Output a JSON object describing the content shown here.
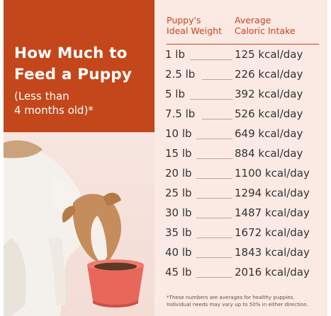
{
  "banner": {
    "title_line1": "How Much to",
    "title_line2": "Feed a Puppy",
    "subtitle_line1": "(Less than",
    "subtitle_line2": "4 months old)*"
  },
  "table": {
    "headers": {
      "weight_line1": "Puppy's",
      "weight_line2": "Ideal Weight",
      "calories_line1": "Average",
      "calories_line2": "Caloric Intake"
    },
    "rows": [
      {
        "weight": "1 lb",
        "calories": "125 kcal/day"
      },
      {
        "weight": "2.5 lb",
        "calories": "226 kcal/day"
      },
      {
        "weight": "5 lb",
        "calories": "392 kcal/day"
      },
      {
        "weight": "7.5 lb",
        "calories": "526 kcal/day"
      },
      {
        "weight": "10 lb",
        "calories": "649 kcal/day"
      },
      {
        "weight": "15 lb",
        "calories": "884 kcal/day"
      },
      {
        "weight": "20 lb",
        "calories": "1100 kcal/day"
      },
      {
        "weight": "25 lb",
        "calories": "1294 kcal/day"
      },
      {
        "weight": "30 lb",
        "calories": "1487 kcal/day"
      },
      {
        "weight": "35 lb",
        "calories": "1672 kcal/day"
      },
      {
        "weight": "40 lb",
        "calories": "1843 kcal/day"
      },
      {
        "weight": "45 lb",
        "calories": "2016 kcal/day"
      }
    ],
    "footnote_line1": "*These numbers are averages for healthy puppies.",
    "footnote_line2": "Individual needs may vary up to 50% in either direction."
  },
  "colors": {
    "accent": "#c3471a",
    "background": "#fbe9e4",
    "bowl": "#e8665a"
  }
}
